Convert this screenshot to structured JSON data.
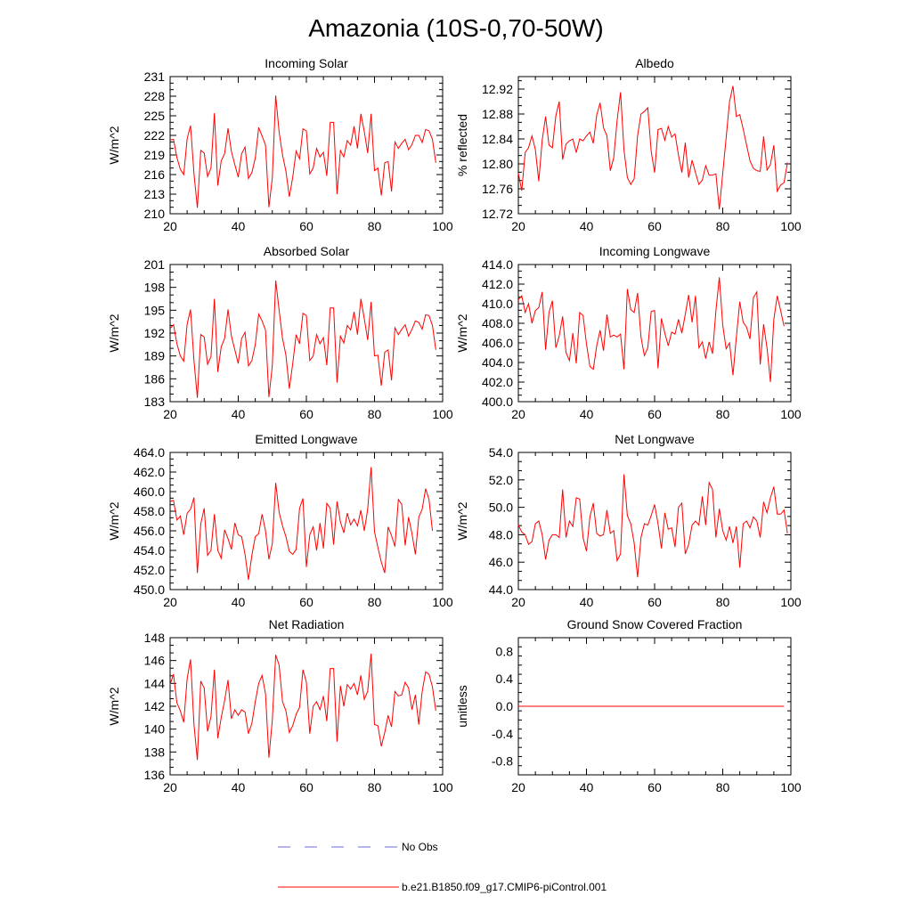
{
  "title": "Amazonia (10S-0,70-50W)",
  "colors": {
    "model": "#ff0000",
    "obs": "#6b6bd6",
    "axis": "#000000"
  },
  "legend": {
    "obs_label": "No Obs",
    "model_label": "b.e21.B1850.f09_g17.CMIP6-piControl.001"
  },
  "chart_data": [
    {
      "type": "line",
      "title": "Incoming Solar",
      "xlabel": "",
      "ylabel": "W/m^2",
      "xlim": [
        20,
        100
      ],
      "ylim": [
        210,
        231
      ],
      "xticks": [
        20,
        40,
        60,
        80,
        100
      ],
      "yticks": [
        210,
        213,
        216,
        219,
        222,
        225,
        228,
        231
      ],
      "ytick_labels": [
        "210",
        "213",
        "216",
        "219",
        "222",
        "225",
        "228",
        "231"
      ],
      "x_start": 20,
      "series": [
        {
          "name": "b.e21.B1850.f09_g17.CMIP6-piControl.001",
          "values": [
            221.3,
            221.4,
            218.6,
            216.8,
            216.0,
            221.5,
            223.5,
            216.2,
            210.9,
            219.7,
            219.3,
            215.7,
            217.0,
            225.4,
            214.3,
            218.1,
            219.2,
            223.1,
            219.5,
            217.5,
            215.6,
            219.2,
            220.2,
            215.4,
            216.3,
            218.5,
            223.2,
            221.9,
            220.5,
            211.0,
            215.5,
            228.1,
            222.5,
            219.0,
            216.5,
            212.6,
            215.6,
            219.6,
            218.4,
            223.0,
            222.7,
            216.1,
            217.0,
            220.0,
            218.7,
            219.4,
            215.8,
            224.0,
            224.0,
            213.0,
            219.7,
            218.7,
            221.2,
            220.5,
            223.4,
            220.0,
            225.3,
            222.6,
            219.3,
            225.3,
            216.6,
            217.0,
            212.8,
            217.8,
            218.0,
            213.4,
            221.0,
            220.0,
            220.8,
            221.4,
            219.8,
            220.6,
            222.0,
            222.0,
            220.9,
            222.9,
            222.7,
            221.4,
            217.8
          ]
        }
      ]
    },
    {
      "type": "line",
      "title": "Albedo",
      "xlabel": "",
      "ylabel": "% reflected",
      "xlim": [
        20,
        100
      ],
      "ylim": [
        12.72,
        12.94
      ],
      "xticks": [
        20,
        40,
        60,
        80,
        100
      ],
      "yticks": [
        12.72,
        12.76,
        12.8,
        12.84,
        12.88,
        12.92
      ],
      "ytick_labels": [
        "12.72",
        "12.76",
        "12.80",
        "12.84",
        "12.88",
        "12.92"
      ],
      "x_start": 20,
      "series": [
        {
          "name": "b.e21.B1850.f09_g17.CMIP6-piControl.001",
          "values": [
            12.785,
            12.757,
            12.818,
            12.826,
            12.845,
            12.823,
            12.772,
            12.838,
            12.876,
            12.83,
            12.826,
            12.877,
            12.9,
            12.807,
            12.832,
            12.837,
            12.84,
            12.818,
            12.84,
            12.837,
            12.845,
            12.851,
            12.833,
            12.878,
            12.898,
            12.858,
            12.845,
            12.789,
            12.81,
            12.87,
            12.915,
            12.823,
            12.778,
            12.767,
            12.776,
            12.845,
            12.88,
            12.884,
            12.89,
            12.82,
            12.786,
            12.855,
            12.857,
            12.838,
            12.86,
            12.843,
            12.848,
            12.814,
            12.786,
            12.834,
            12.778,
            12.806,
            12.786,
            12.767,
            12.774,
            12.797,
            12.782,
            12.782,
            12.784,
            12.727,
            12.785,
            12.842,
            12.9,
            12.925,
            12.876,
            12.879,
            12.856,
            12.83,
            12.805,
            12.793,
            12.789,
            12.788,
            12.844,
            12.79,
            12.799,
            12.83,
            12.756,
            12.766,
            12.77,
            12.802
          ]
        }
      ]
    },
    {
      "type": "line",
      "title": "Absorbed Solar",
      "xlabel": "",
      "ylabel": "W/m^2",
      "xlim": [
        20,
        100
      ],
      "ylim": [
        183,
        201
      ],
      "xticks": [
        20,
        40,
        60,
        80,
        100
      ],
      "yticks": [
        183,
        186,
        189,
        192,
        195,
        198,
        201
      ],
      "ytick_labels": [
        "183",
        "186",
        "189",
        "192",
        "195",
        "198",
        "201"
      ],
      "x_start": 20,
      "series": [
        {
          "name": "b.e21.B1850.f09_g17.CMIP6-piControl.001",
          "values": [
            192.6,
            193.1,
            190.6,
            189.0,
            188.3,
            193.2,
            195.1,
            188.4,
            183.5,
            191.8,
            191.5,
            187.9,
            188.9,
            196.5,
            186.9,
            190.2,
            191.3,
            195.1,
            191.6,
            189.8,
            188.0,
            191.3,
            192.1,
            187.7,
            188.4,
            190.5,
            194.5,
            193.6,
            192.4,
            183.6,
            187.7,
            198.9,
            195.0,
            191.3,
            189.1,
            184.7,
            188.0,
            191.8,
            190.6,
            194.6,
            194.3,
            188.4,
            189.0,
            191.8,
            190.6,
            191.4,
            187.8,
            195.3,
            195.3,
            185.5,
            191.6,
            190.7,
            193.0,
            192.4,
            194.8,
            191.8,
            196.5,
            193.9,
            191.1,
            196.1,
            189.0,
            189.1,
            185.1,
            189.5,
            189.8,
            185.8,
            192.7,
            191.8,
            192.5,
            193.1,
            191.6,
            192.5,
            193.6,
            193.4,
            192.5,
            194.4,
            194.3,
            193.0,
            189.8
          ]
        }
      ]
    },
    {
      "type": "line",
      "title": "Incoming Longwave",
      "xlabel": "",
      "ylabel": "W/m^2",
      "xlim": [
        20,
        100
      ],
      "ylim": [
        400.0,
        414.0
      ],
      "xticks": [
        20,
        40,
        60,
        80,
        100
      ],
      "yticks": [
        400,
        402,
        404,
        406,
        408,
        410,
        412,
        414
      ],
      "ytick_labels": [
        "400.0",
        "402.0",
        "404.0",
        "406.0",
        "408.0",
        "410.0",
        "412.0",
        "414.0"
      ],
      "x_start": 20,
      "series": [
        {
          "name": "b.e21.B1850.f09_g17.CMIP6-piControl.001",
          "values": [
            410.4,
            410.8,
            409.1,
            410.0,
            408.0,
            409.3,
            409.6,
            411.2,
            405.3,
            409.1,
            410.3,
            405.5,
            406.7,
            408.7,
            405.0,
            404.2,
            407.0,
            403.9,
            409.1,
            408.8,
            405.9,
            403.6,
            403.3,
            405.7,
            407.3,
            405.2,
            408.9,
            406.6,
            406.8,
            406.6,
            406.9,
            403.3,
            411.5,
            409.4,
            409.1,
            411.1,
            406.6,
            404.7,
            405.5,
            409.2,
            409.3,
            403.4,
            408.5,
            407.0,
            405.7,
            407.1,
            406.9,
            408.4,
            407.0,
            408.9,
            410.9,
            408.1,
            410.8,
            405.5,
            406.1,
            404.4,
            406.1,
            404.9,
            409.3,
            412.7,
            407.8,
            405.4,
            406.0,
            402.7,
            406.6,
            410.2,
            408.1,
            407.6,
            406.4,
            410.6,
            411.2,
            403.8,
            407.9,
            405.5,
            402.0,
            408.4,
            410.8,
            409.3,
            407.7
          ]
        }
      ]
    },
    {
      "type": "line",
      "title": "Emitted Longwave",
      "xlabel": "",
      "ylabel": "W/m^2",
      "xlim": [
        20,
        100
      ],
      "ylim": [
        450.0,
        464.0
      ],
      "xticks": [
        20,
        40,
        60,
        80,
        100
      ],
      "yticks": [
        450,
        452,
        454,
        456,
        458,
        460,
        462,
        464
      ],
      "ytick_labels": [
        "450.0",
        "452.0",
        "454.0",
        "456.0",
        "458.0",
        "460.0",
        "462.0",
        "464.0"
      ],
      "x_start": 20,
      "series": [
        {
          "name": "b.e21.B1850.f09_g17.CMIP6-piControl.001",
          "values": [
            459.0,
            459.1,
            457.1,
            457.5,
            455.6,
            457.8,
            458.2,
            459.4,
            451.7,
            456.7,
            458.3,
            453.5,
            454.0,
            457.7,
            454.0,
            453.2,
            456.1,
            455.2,
            454.1,
            456.8,
            455.6,
            455.4,
            453.6,
            451.0,
            453.5,
            455.4,
            455.7,
            457.7,
            456.0,
            453.1,
            454.7,
            460.9,
            457.9,
            456.5,
            455.4,
            453.9,
            453.6,
            454.1,
            458.3,
            459.3,
            452.3,
            455.6,
            456.4,
            454.0,
            456.8,
            454.2,
            458.8,
            458.3,
            454.6,
            459.0,
            456.9,
            455.8,
            457.8,
            456.6,
            457.2,
            456.5,
            458.1,
            456.0,
            458.2,
            462.5,
            455.9,
            454.3,
            452.8,
            451.7,
            456.4,
            455.5,
            454.4,
            459.2,
            458.7,
            454.5,
            457.4,
            455.7,
            453.6,
            457.4,
            458.2,
            460.3,
            459.2,
            456.0
          ]
        }
      ]
    },
    {
      "type": "line",
      "title": "Net Longwave",
      "xlabel": "",
      "ylabel": "W/m^2",
      "xlim": [
        20,
        100
      ],
      "ylim": [
        44.0,
        54.0
      ],
      "xticks": [
        20,
        40,
        60,
        80,
        100
      ],
      "yticks": [
        44,
        46,
        48,
        50,
        52,
        54
      ],
      "ytick_labels": [
        "44.0",
        "46.0",
        "48.0",
        "50.0",
        "52.0",
        "54.0"
      ],
      "x_start": 20,
      "series": [
        {
          "name": "b.e21.B1850.f09_g17.CMIP6-piControl.001",
          "values": [
            48.7,
            48.2,
            48.0,
            47.3,
            47.5,
            48.8,
            49.0,
            48.0,
            46.2,
            47.6,
            48.0,
            48.0,
            47.8,
            51.3,
            47.8,
            49.0,
            48.6,
            50.7,
            50.6,
            47.8,
            46.8,
            49.3,
            50.3,
            48.1,
            47.9,
            48.0,
            49.8,
            48.1,
            48.3,
            46.1,
            46.6,
            52.4,
            49.4,
            48.8,
            47.4,
            44.9,
            47.8,
            48.8,
            48.7,
            49.4,
            50.2,
            48.8,
            47.0,
            49.6,
            48.4,
            48.5,
            47.1,
            50.0,
            50.3,
            46.6,
            47.3,
            48.7,
            49.0,
            48.7,
            50.8,
            48.7,
            51.8,
            51.3,
            47.8,
            49.9,
            48.3,
            47.6,
            48.6,
            47.4,
            48.6,
            45.6,
            48.8,
            49.0,
            48.5,
            49.3,
            49.0,
            47.8,
            50.4,
            49.6,
            50.7,
            51.5,
            49.5,
            49.5,
            49.8,
            48.1
          ]
        }
      ]
    },
    {
      "type": "line",
      "title": "Net Radiation",
      "xlabel": "",
      "ylabel": "W/m^2",
      "xlim": [
        20,
        100
      ],
      "ylim": [
        136,
        148
      ],
      "xticks": [
        20,
        40,
        60,
        80,
        100
      ],
      "yticks": [
        136,
        138,
        140,
        142,
        144,
        146,
        148
      ],
      "ytick_labels": [
        "136",
        "138",
        "140",
        "142",
        "144",
        "146",
        "148"
      ],
      "x_start": 20,
      "series": [
        {
          "name": "b.e21.B1850.f09_g17.CMIP6-piControl.001",
          "values": [
            143.9,
            144.8,
            142.3,
            141.6,
            140.6,
            144.4,
            146.1,
            140.4,
            137.3,
            144.2,
            143.6,
            139.8,
            141.1,
            145.2,
            139.2,
            141.0,
            142.5,
            144.3,
            140.9,
            141.7,
            141.2,
            141.7,
            141.5,
            139.6,
            140.5,
            142.4,
            144.0,
            144.7,
            143.1,
            137.5,
            140.8,
            146.5,
            145.6,
            142.4,
            141.6,
            139.7,
            140.3,
            141.3,
            141.9,
            145.2,
            144.1,
            139.6,
            142.0,
            142.4,
            141.7,
            142.9,
            140.7,
            145.3,
            145.3,
            138.9,
            143.8,
            142.0,
            143.9,
            143.5,
            144.0,
            143.0,
            144.7,
            142.6,
            143.3,
            146.6,
            140.4,
            140.3,
            138.5,
            139.7,
            141.2,
            140.2,
            143.3,
            142.9,
            143.0,
            144.1,
            143.6,
            141.7,
            143.0,
            140.4,
            143.3,
            145.0,
            144.8,
            143.7,
            141.6
          ]
        }
      ]
    },
    {
      "type": "line",
      "title": "Ground Snow Covered Fraction",
      "xlabel": "",
      "ylabel": "unitless",
      "xlim": [
        20,
        100
      ],
      "ylim": [
        -1.0,
        1.0
      ],
      "xticks": [
        20,
        40,
        60,
        80,
        100
      ],
      "yticks": [
        -0.8,
        -0.4,
        0.0,
        0.4,
        0.8
      ],
      "ytick_labels": [
        "-0.8",
        "-0.4",
        "0.0",
        "0.4",
        "0.8"
      ],
      "x_start": 20,
      "series": [
        {
          "name": "b.e21.B1850.f09_g17.CMIP6-piControl.001",
          "values": [
            0,
            0,
            0,
            0,
            0,
            0,
            0,
            0,
            0,
            0,
            0,
            0,
            0,
            0,
            0,
            0,
            0,
            0,
            0,
            0,
            0,
            0,
            0,
            0,
            0,
            0,
            0,
            0,
            0,
            0,
            0,
            0,
            0,
            0,
            0,
            0,
            0,
            0,
            0,
            0,
            0,
            0,
            0,
            0,
            0,
            0,
            0,
            0,
            0,
            0,
            0,
            0,
            0,
            0,
            0,
            0,
            0,
            0,
            0,
            0,
            0,
            0,
            0,
            0,
            0,
            0,
            0,
            0,
            0,
            0,
            0,
            0,
            0,
            0,
            0,
            0,
            0,
            0,
            0
          ]
        }
      ]
    }
  ]
}
